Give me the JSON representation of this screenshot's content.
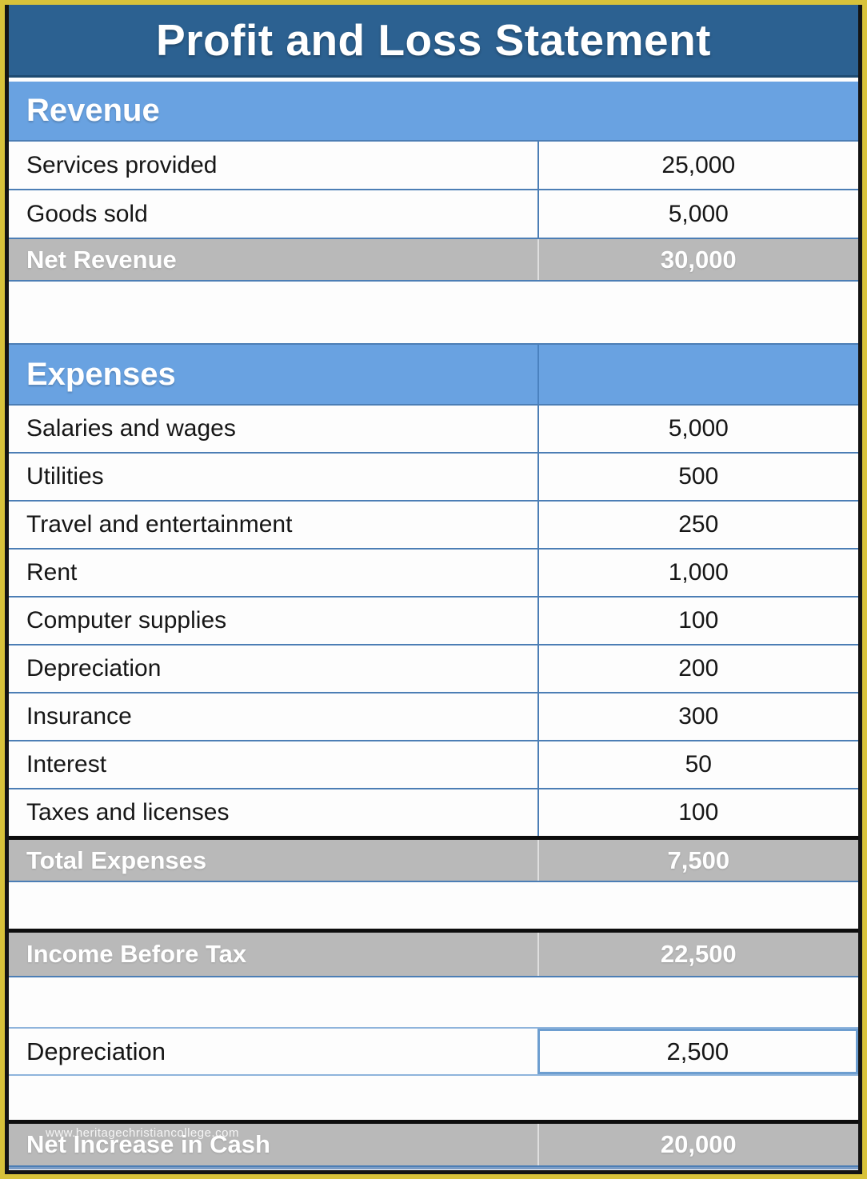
{
  "title": "Profit and Loss Statement",
  "watermark": "www.heritagechristiancollege.com",
  "colors": {
    "frame_yellow": "#D8C23A",
    "title_bar_blue": "#2C6191",
    "section_header_blue": "#69A2E1",
    "row_border_blue": "#4C7EB5",
    "total_row_gray": "#B9B9B9",
    "black_divider": "#0D0D0D",
    "boxed_cell_border_blue": "#6D9ED0"
  },
  "rows": [
    {
      "type": "section",
      "label": "Revenue",
      "value": "",
      "divider": false
    },
    {
      "type": "item",
      "label": "Services provided",
      "value": "25,000"
    },
    {
      "type": "item",
      "label": "Goods sold",
      "value": "5,000"
    },
    {
      "type": "total",
      "label": "Net Revenue",
      "value": "30,000",
      "black_top": false
    },
    {
      "type": "blank",
      "label": "",
      "value": ""
    },
    {
      "type": "section",
      "label": "Expenses",
      "value": "",
      "divider": true
    },
    {
      "type": "item",
      "label": "Salaries and wages",
      "value": "5,000"
    },
    {
      "type": "item",
      "label": "Utilities",
      "value": "500"
    },
    {
      "type": "item",
      "label": "Travel and entertainment",
      "value": "250"
    },
    {
      "type": "item",
      "label": "Rent",
      "value": "1,000"
    },
    {
      "type": "item",
      "label": "Computer supplies",
      "value": "100"
    },
    {
      "type": "item",
      "label": "Depreciation",
      "value": "200"
    },
    {
      "type": "item",
      "label": "Insurance",
      "value": "300"
    },
    {
      "type": "item",
      "label": "Interest",
      "value": "50"
    },
    {
      "type": "item",
      "label": "Taxes and licenses",
      "value": "100"
    },
    {
      "type": "total",
      "label": "Total Expenses",
      "value": "7,500",
      "black_top": true
    },
    {
      "type": "blank",
      "label": "",
      "value": ""
    },
    {
      "type": "total",
      "label": "Income Before Tax",
      "value": "22,500",
      "black_top": true
    },
    {
      "type": "blank",
      "label": "",
      "value": ""
    },
    {
      "type": "boxed",
      "label": "Depreciation",
      "value": "2,500"
    },
    {
      "type": "blank",
      "label": "",
      "value": ""
    },
    {
      "type": "total",
      "label": "Net Increase in Cash",
      "value": "20,000",
      "black_top": true
    }
  ]
}
